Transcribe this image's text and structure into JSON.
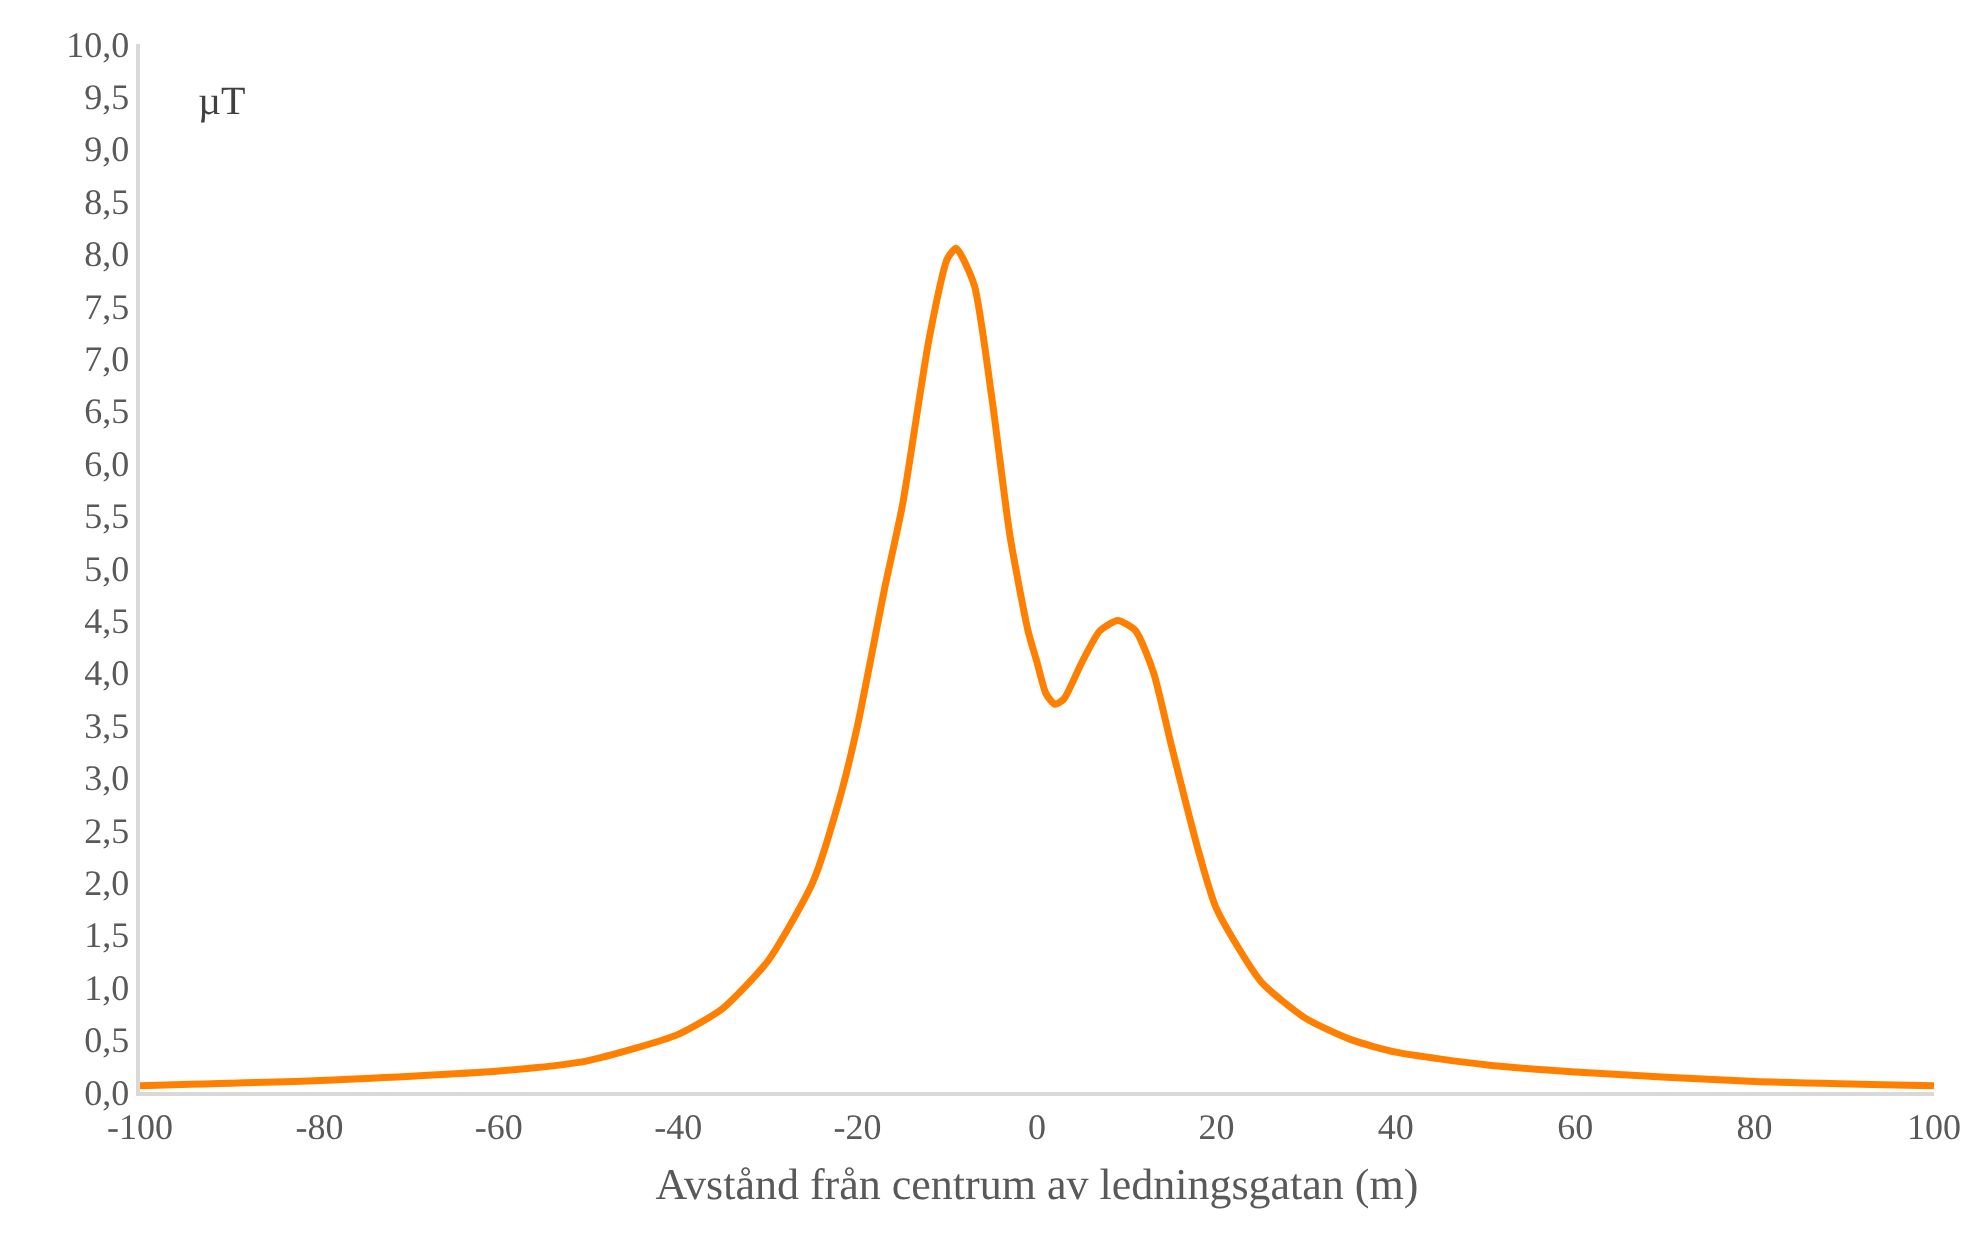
{
  "chart_data": {
    "type": "line",
    "xlabel": "Avstånd från centrum av ledningsgatan (m)",
    "annotations": [
      "µT"
    ],
    "x": [
      -100,
      -80,
      -60,
      -50,
      -40,
      -35,
      -30,
      -25,
      -22,
      -20,
      -17,
      -15,
      -12,
      -10,
      -9,
      -7,
      -5,
      -3,
      -1,
      0,
      1,
      2,
      3,
      5,
      7,
      9,
      11,
      13,
      15,
      18,
      20,
      25,
      30,
      35,
      40,
      50,
      60,
      80,
      100
    ],
    "series": [
      {
        "color": "#ff8000",
        "values": [
          0.06,
          0.11,
          0.2,
          0.3,
          0.55,
          0.8,
          1.25,
          2.0,
          2.8,
          3.5,
          4.8,
          5.6,
          7.2,
          7.95,
          8.05,
          7.7,
          6.6,
          5.3,
          4.4,
          4.1,
          3.8,
          3.7,
          3.75,
          4.1,
          4.4,
          4.5,
          4.4,
          4.0,
          3.3,
          2.3,
          1.75,
          1.05,
          0.7,
          0.5,
          0.38,
          0.26,
          0.19,
          0.1,
          0.06
        ]
      }
    ],
    "xlim": [
      -100,
      100
    ],
    "xticks": [
      -100,
      -80,
      -60,
      -40,
      -20,
      0,
      20,
      40,
      60,
      80,
      100
    ],
    "ylim": [
      0,
      10
    ],
    "yticks": [
      {
        "value": 0,
        "label": "0,0"
      },
      {
        "value": 0.5,
        "label": "0,5"
      },
      {
        "value": 1,
        "label": "1,0"
      },
      {
        "value": 1.5,
        "label": "1,5"
      },
      {
        "value": 2,
        "label": "2,0"
      },
      {
        "value": 2.5,
        "label": "2,5"
      },
      {
        "value": 3,
        "label": "3,0"
      },
      {
        "value": 3.5,
        "label": "3,5"
      },
      {
        "value": 4,
        "label": "4,0"
      },
      {
        "value": 4.5,
        "label": "4,5"
      },
      {
        "value": 5,
        "label": "5,0"
      },
      {
        "value": 5.5,
        "label": "5,5"
      },
      {
        "value": 6,
        "label": "6,0"
      },
      {
        "value": 6.5,
        "label": "6,5"
      },
      {
        "value": 7,
        "label": "7,0"
      },
      {
        "value": 7.5,
        "label": "7,5"
      },
      {
        "value": 8,
        "label": "8,0"
      },
      {
        "value": 8.5,
        "label": "8,5"
      },
      {
        "value": 9,
        "label": "9,0"
      },
      {
        "value": 9.5,
        "label": "9,5"
      },
      {
        "value": 10,
        "label": "10,0"
      }
    ],
    "grid": false,
    "marker": "none",
    "line_style": "solid"
  }
}
